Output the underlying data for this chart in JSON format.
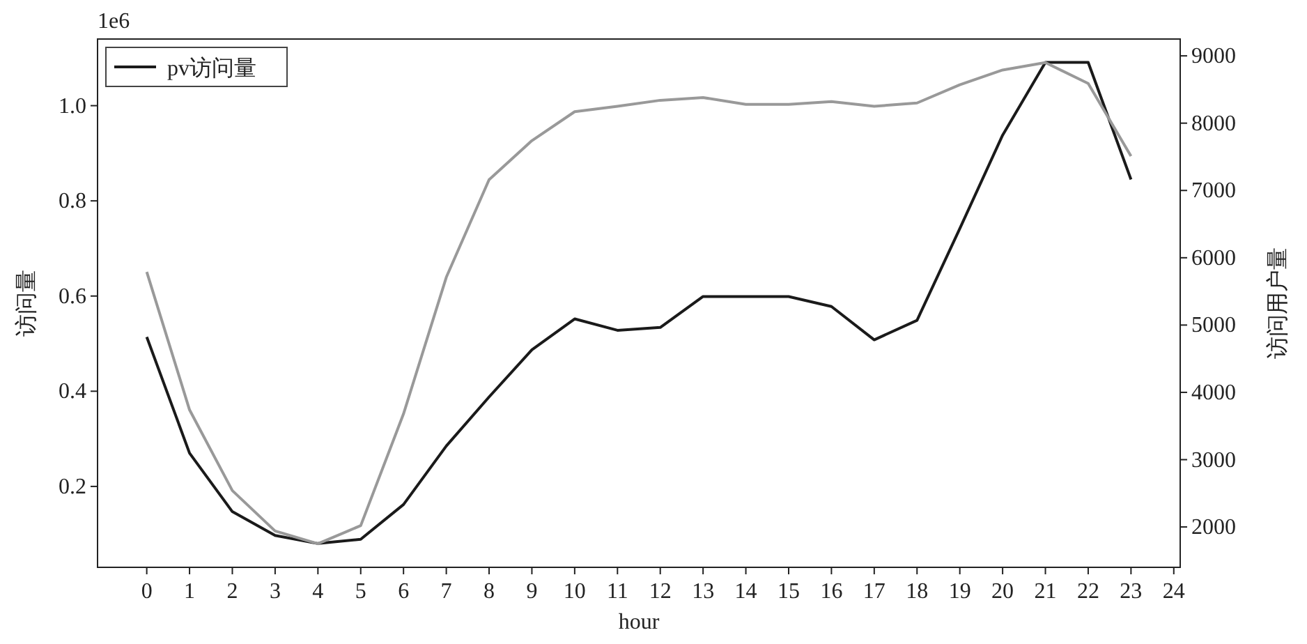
{
  "chart_data": {
    "type": "line",
    "xlabel": "hour",
    "ylabel": "访问量",
    "y2label": "访问用户量",
    "annotations": [
      "1e6"
    ],
    "x": [
      0,
      1,
      2,
      3,
      4,
      5,
      6,
      7,
      8,
      9,
      10,
      11,
      12,
      13,
      14,
      15,
      16,
      17,
      18,
      19,
      20,
      21,
      22,
      23
    ],
    "series": [
      {
        "name": "pv访问量",
        "color": "#1a1a1a",
        "values": [
          0.514,
          0.27,
          0.147,
          0.097,
          0.08,
          0.089,
          0.162,
          0.285,
          0.388,
          0.487,
          0.552,
          0.528,
          0.534,
          0.599,
          0.599,
          0.599,
          0.578,
          0.508,
          0.549,
          0.742,
          0.938,
          1.091,
          1.091,
          0.845
        ]
      },
      {
        "color": "#999999",
        "axis": "y2",
        "values": [
          5790,
          3740,
          2540,
          1940,
          1750,
          2020,
          3680,
          5710,
          7160,
          7740,
          8170,
          8250,
          8340,
          8380,
          8280,
          8280,
          8320,
          8250,
          8300,
          8570,
          8790,
          8900,
          8590,
          7510
        ]
      }
    ],
    "xlim": [
      -1.15,
      24.15
    ],
    "xticks": [
      0,
      1,
      2,
      3,
      4,
      5,
      6,
      7,
      8,
      9,
      10,
      11,
      12,
      13,
      14,
      15,
      16,
      17,
      18,
      19,
      20,
      21,
      22,
      23,
      24
    ],
    "ylim": [
      0.03,
      1.14
    ],
    "yticks": [
      0.2,
      0.4,
      0.6,
      0.8,
      {
        "value": 1,
        "label": "1.0"
      }
    ],
    "y2lim": [
      1400,
      9250
    ],
    "y2ticks": [
      2000,
      3000,
      4000,
      5000,
      6000,
      7000,
      8000,
      9000
    ],
    "legend": "top left",
    "grid": false,
    "marker": "none",
    "line_style": "solid"
  }
}
